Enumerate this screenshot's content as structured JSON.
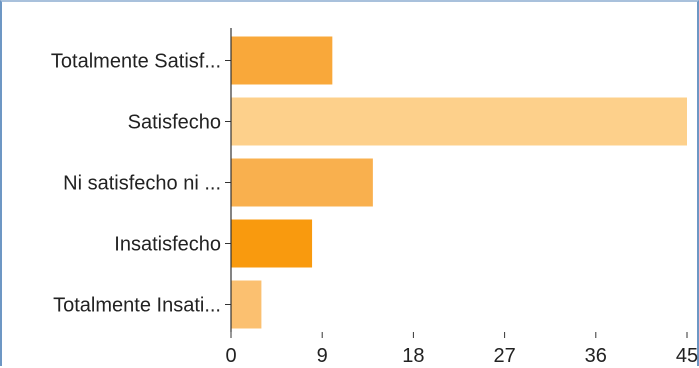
{
  "chart_data": {
    "type": "bar",
    "orientation": "horizontal",
    "categories": [
      "Totalmente Satisf...",
      "Satisfecho",
      "Ni satisfecho ni ...",
      "Insatisfecho",
      "Totalmente Insati..."
    ],
    "values": [
      10,
      45,
      14,
      8,
      3
    ],
    "bar_colors": [
      "#f9a83a",
      "#fdd08b",
      "#f9b04e",
      "#f99a0e",
      "#fbc070"
    ],
    "xlim": [
      0,
      45
    ],
    "x_ticks": [
      "0",
      "9",
      "18",
      "27",
      "36",
      "45"
    ],
    "title": "",
    "xlabel": "",
    "ylabel": "",
    "grid": false,
    "legend": "none"
  }
}
